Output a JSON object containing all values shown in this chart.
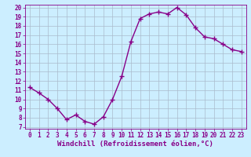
{
  "x": [
    0,
    1,
    2,
    3,
    4,
    5,
    6,
    7,
    8,
    9,
    10,
    11,
    12,
    13,
    14,
    15,
    16,
    17,
    18,
    19,
    20,
    21,
    22,
    23
  ],
  "y": [
    11.3,
    10.7,
    10.0,
    9.0,
    7.8,
    8.3,
    7.6,
    7.3,
    8.1,
    10.0,
    12.5,
    16.3,
    18.8,
    19.3,
    19.5,
    19.3,
    20.0,
    19.2,
    17.8,
    16.8,
    16.6,
    16.0,
    15.4,
    15.2
  ],
  "line_color": "#880088",
  "marker": "+",
  "marker_size": 4,
  "linewidth": 1.0,
  "bg_color": "#cceeff",
  "grid_color": "#aabbcc",
  "xlabel": "Windchill (Refroidissement éolien,°C)",
  "ylim": [
    7,
    20
  ],
  "xlim": [
    -0.5,
    23.5
  ],
  "yticks": [
    7,
    8,
    9,
    10,
    11,
    12,
    13,
    14,
    15,
    16,
    17,
    18,
    19,
    20
  ],
  "xticks": [
    0,
    1,
    2,
    3,
    4,
    5,
    6,
    7,
    8,
    9,
    10,
    11,
    12,
    13,
    14,
    15,
    16,
    17,
    18,
    19,
    20,
    21,
    22,
    23
  ],
  "tick_fontsize": 5.5,
  "xlabel_fontsize": 6.5
}
